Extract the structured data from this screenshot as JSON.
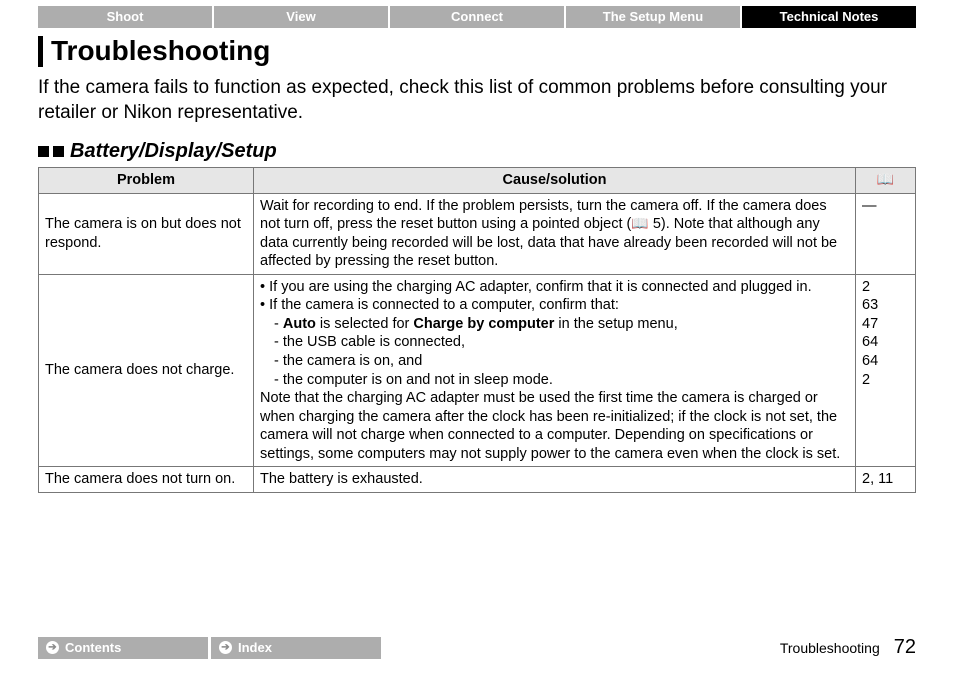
{
  "tabs": {
    "items": [
      "Shoot",
      "View",
      "Connect",
      "The Setup Menu",
      "Technical Notes"
    ],
    "active_index": 4,
    "inactive_bg": "#adadad",
    "active_bg": "#000000",
    "text_color": "#ffffff"
  },
  "heading": "Troubleshooting",
  "intro": "If the camera fails to function as expected, check this list of common problems before consulting your retailer or Nikon representative.",
  "section_title": "Battery/Display/Setup",
  "table": {
    "headers": {
      "problem": "Problem",
      "solution": "Cause/solution",
      "ref_icon": "📖"
    },
    "header_bg": "#e6e6e6",
    "border_color": "#777777",
    "rows": [
      {
        "problem": "The camera is on but does not respond.",
        "solution_pre": "Wait for recording to end. If the problem persists, turn the camera off. If the camera does not turn off, press the reset button using a pointed object (",
        "solution_ref_inline": "5",
        "solution_post": "). Note that although any data currently being recorded will be lost, data that have already been recorded will not be affected by pressing the reset button.",
        "ref": "—"
      },
      {
        "problem": "The camera does not charge.",
        "bullets": [
          "If you are using the charging AC adapter, confirm that it is connected and plugged in.",
          "If the camera is connected to a computer, confirm that:"
        ],
        "sub_line1_pre": "- ",
        "sub_line1_b1": "Auto",
        "sub_line1_mid": " is selected for ",
        "sub_line1_b2": "Charge by computer",
        "sub_line1_post": " in the setup menu,",
        "subs_rest": [
          "-  the USB cable is connected,",
          "-  the camera is on, and",
          "-  the computer is on and not in sleep mode."
        ],
        "note": "Note that the charging AC adapter must be used the first time the camera is charged or when charging the camera after the clock has been re-initialized; if the clock is not set, the camera will not charge when connected to a computer. Depending on specifications or settings, some computers may not supply power to the camera even when the clock is set.",
        "ref_lines": [
          "2",
          "",
          "63",
          "47",
          "64",
          "64",
          "2"
        ]
      },
      {
        "problem": "The camera does not turn on.",
        "solution_plain": "The battery is exhausted.",
        "ref": "2, 11"
      }
    ]
  },
  "footer": {
    "buttons": [
      "Contents",
      "Index"
    ],
    "section": "Troubleshooting",
    "page": "72"
  }
}
